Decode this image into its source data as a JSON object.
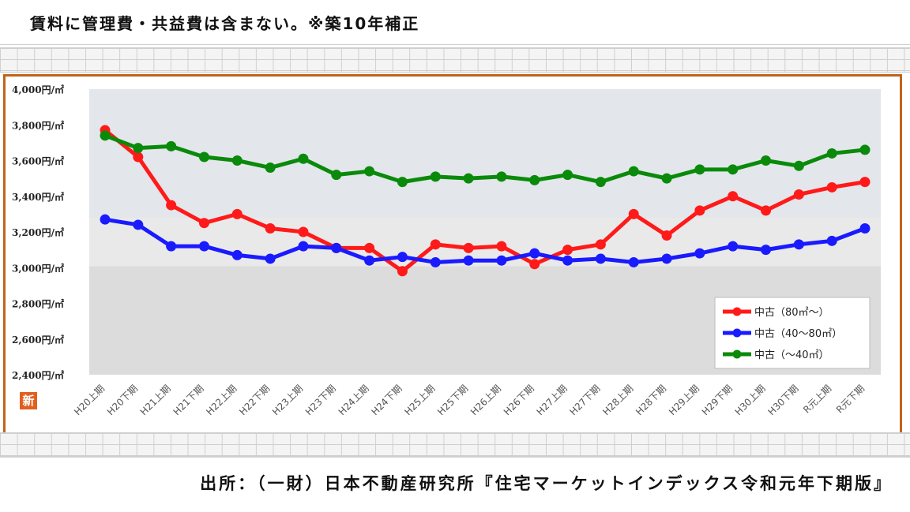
{
  "header": {
    "note": "賃料に管理費・共益費は含まない。※築10年補正"
  },
  "footer": {
    "source": "出所：（一財）日本不動産研究所『住宅マーケットインデックス令和元年下期版』"
  },
  "badge": {
    "label": "新"
  },
  "colors": {
    "frame": "#c0641a",
    "series_used_80": "#ff1a1a",
    "series_used_40_80": "#1a1aff",
    "series_used_under40": "#0a8a0a"
  },
  "chart_data": {
    "type": "line",
    "title": "",
    "xlabel": "",
    "ylabel": "",
    "ylim": [
      2400,
      4000
    ],
    "yticks": [
      4000,
      3800,
      3600,
      3400,
      3200,
      3000,
      2800,
      2600,
      2400
    ],
    "ytick_labels": [
      "4,000円/㎡",
      "3,800円/㎡",
      "3,600円/㎡",
      "3,400円/㎡",
      "3,200円/㎡",
      "3,000円/㎡",
      "2,800円/㎡",
      "2,600円/㎡",
      "2,400円/㎡"
    ],
    "categories": [
      "H20上期",
      "H20下期",
      "H21上期",
      "H21下期",
      "H22上期",
      "H22下期",
      "H23上期",
      "H23下期",
      "H24上期",
      "H24下期",
      "H25上期",
      "H25下期",
      "H26上期",
      "H26下期",
      "H27上期",
      "H27下期",
      "H28上期",
      "H28下期",
      "H29上期",
      "H29下期",
      "H30上期",
      "H30下期",
      "R元上期",
      "R元下期"
    ],
    "legend_position": "bottom-right",
    "grid": false,
    "series": [
      {
        "name": "中古（80㎡～）",
        "color": "#ff1a1a",
        "values": [
          3770,
          3620,
          3350,
          3250,
          3300,
          3220,
          3200,
          3110,
          3110,
          2980,
          3130,
          3110,
          3120,
          3020,
          3100,
          3130,
          3300,
          3180,
          3320,
          3400,
          3320,
          3410,
          3450,
          3480
        ]
      },
      {
        "name": "中古（40～80㎡）",
        "color": "#1a1aff",
        "values": [
          3270,
          3240,
          3120,
          3120,
          3070,
          3050,
          3120,
          3110,
          3040,
          3060,
          3030,
          3040,
          3040,
          3080,
          3040,
          3050,
          3030,
          3050,
          3080,
          3120,
          3100,
          3130,
          3150,
          3220
        ]
      },
      {
        "name": "中古（～40㎡）",
        "color": "#0a8a0a",
        "values": [
          3740,
          3670,
          3680,
          3620,
          3600,
          3560,
          3610,
          3520,
          3540,
          3480,
          3510,
          3500,
          3510,
          3490,
          3520,
          3480,
          3540,
          3500,
          3550,
          3550,
          3600,
          3570,
          3640,
          3660
        ]
      }
    ]
  }
}
